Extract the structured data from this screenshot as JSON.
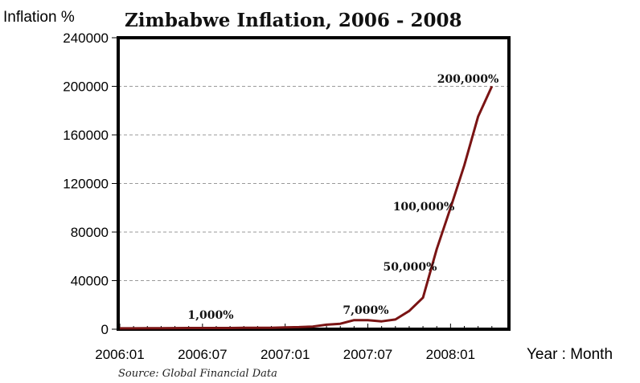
{
  "chart_data": {
    "type": "line",
    "title": "Zimbabwe Inflation, 2006 - 2008",
    "ylabel": "Inflation %",
    "xlabel": "Year : Month",
    "source": "Source: Global Financial Data",
    "ylim": [
      0,
      240000
    ],
    "y_ticks": [
      0,
      40000,
      80000,
      120000,
      160000,
      200000,
      240000
    ],
    "y_tick_labels": [
      "0",
      "40000",
      "80000",
      "120000",
      "160000",
      "200000",
      "240000"
    ],
    "x_ticks": [
      "2006:01",
      "2006:07",
      "2007:01",
      "2007:07",
      "2008:01"
    ],
    "grid": true,
    "series": [
      {
        "color": "#7a1414",
        "x": [
          "2006:01",
          "2006:02",
          "2006:03",
          "2006:04",
          "2006:05",
          "2006:06",
          "2006:07",
          "2006:08",
          "2006:09",
          "2006:10",
          "2006:11",
          "2006:12",
          "2007:01",
          "2007:02",
          "2007:03",
          "2007:04",
          "2007:05",
          "2007:06",
          "2007:07",
          "2007:08",
          "2007:09",
          "2007:10",
          "2007:11",
          "2007:12",
          "2008:01",
          "2008:02",
          "2008:03",
          "2008:04"
        ],
        "values": [
          700,
          700,
          800,
          800,
          900,
          1000,
          1000,
          1000,
          1000,
          1100,
          1100,
          1200,
          1500,
          1700,
          2200,
          3700,
          4500,
          7500,
          7500,
          6500,
          8000,
          15000,
          26000,
          66000,
          100000,
          135000,
          175000,
          200000
        ]
      }
    ],
    "annotations": [
      {
        "text": "1,000%",
        "x": "2006:07"
      },
      {
        "text": "7,000%",
        "x": "2007:06"
      },
      {
        "text": "50,000%",
        "x": "2007:11"
      },
      {
        "text": "100,000%",
        "x": "2007:12"
      },
      {
        "text": "200,000%",
        "x": "2008:03"
      }
    ]
  }
}
